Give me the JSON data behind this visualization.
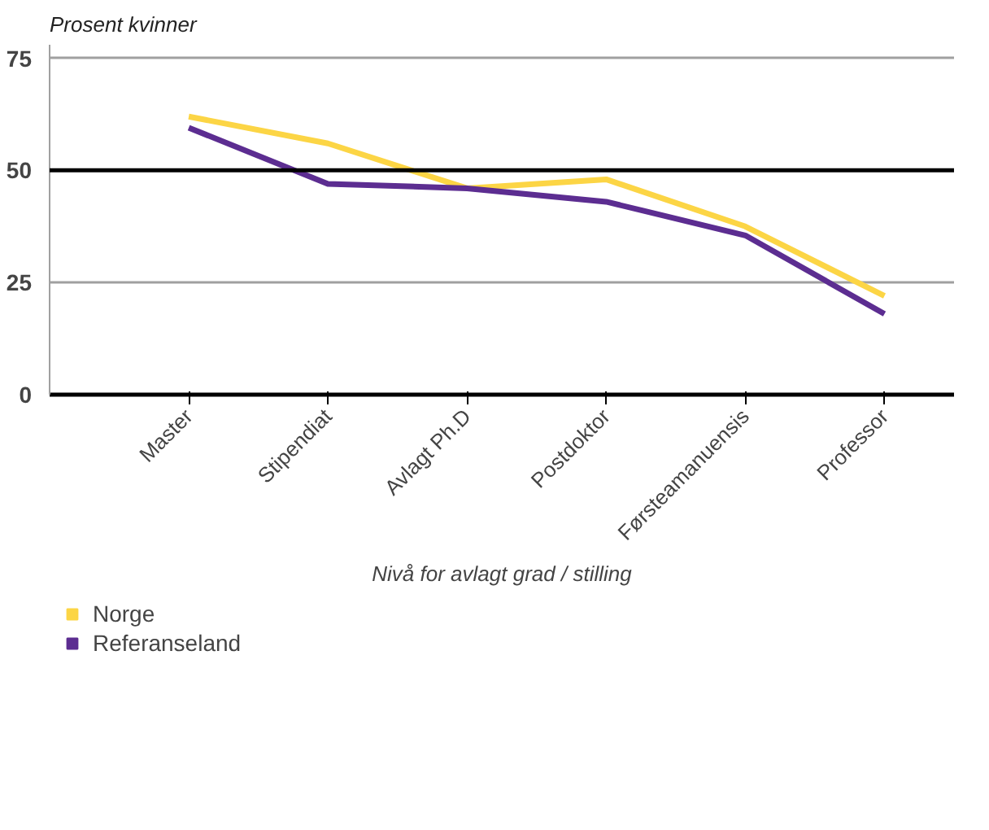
{
  "chart_data": {
    "type": "line",
    "title": "Prosent kvinner",
    "xlabel": "Nivå for avlagt grad / stilling",
    "categories": [
      "Master",
      "Stipendiat",
      "Avlagt Ph.D",
      "Postdoktor",
      "Førsteamanuensis",
      "Professor"
    ],
    "series": [
      {
        "name": "Norge",
        "color": "#fcd545",
        "values": [
          62,
          56,
          46,
          48,
          37.5,
          22
        ]
      },
      {
        "name": "Referanseland",
        "color": "#5c2d91",
        "values": [
          59.5,
          47,
          46,
          43,
          35.5,
          18
        ]
      }
    ],
    "ylim": [
      0,
      78
    ],
    "yticks": [
      0,
      25,
      50,
      75
    ],
    "grid": "y",
    "legend": "bottom",
    "marker": "none",
    "line_style": "solid",
    "ref_lines": [
      {
        "axis": "y",
        "value": 50,
        "color": "#000000"
      }
    ]
  }
}
